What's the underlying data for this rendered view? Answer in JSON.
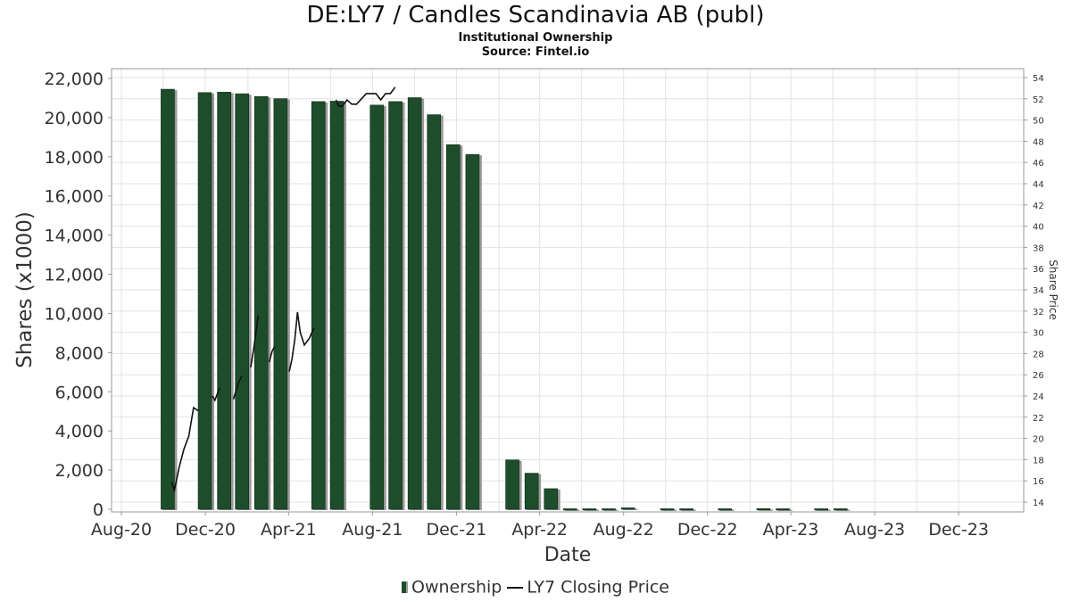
{
  "chart_data": {
    "type": "bar",
    "title": "DE:LY7 / Candles Scandinavia AB (publ)",
    "subtitle": "Institutional Ownership",
    "source": "Source: Fintel.io",
    "xlabel": "Date",
    "ylabel": "Shares (x1000)",
    "y2label": "Share Price",
    "ylim": [
      0,
      22400
    ],
    "y2lim": [
      13.3,
      54.9
    ],
    "x_ticks": [
      "Aug-20",
      "Dec-20",
      "Apr-21",
      "Aug-21",
      "Dec-21",
      "Apr-22",
      "Aug-22",
      "Dec-22",
      "Apr-23",
      "Aug-23",
      "Dec-23"
    ],
    "y_ticks": [
      "0",
      "2,000",
      "4,000",
      "6,000",
      "8,000",
      "10,000",
      "12,000",
      "14,000",
      "16,000",
      "18,000",
      "20,000",
      "22,000"
    ],
    "y2_ticks": [
      "14",
      "16",
      "18",
      "20",
      "22",
      "24",
      "26",
      "28",
      "30",
      "32",
      "34",
      "36",
      "38",
      "40",
      "42",
      "44",
      "46",
      "48",
      "50",
      "52",
      "54"
    ],
    "grid": true,
    "legend_position": "bottom",
    "series": [
      {
        "name": "Ownership",
        "color": "#1e4d2b",
        "points": [
          {
            "date": "2020-10-08",
            "value": 21450
          },
          {
            "date": "2020-12-01",
            "value": 21280
          },
          {
            "date": "2020-12-29",
            "value": 21300
          },
          {
            "date": "2021-01-24",
            "value": 21220
          },
          {
            "date": "2021-02-21",
            "value": 21080
          },
          {
            "date": "2021-03-21",
            "value": 20970
          },
          {
            "date": "2021-05-15",
            "value": 20820
          },
          {
            "date": "2021-06-11",
            "value": 20840
          },
          {
            "date": "2021-08-08",
            "value": 20640
          },
          {
            "date": "2021-09-04",
            "value": 20820
          },
          {
            "date": "2021-10-02",
            "value": 21020
          },
          {
            "date": "2021-10-30",
            "value": 20150
          },
          {
            "date": "2021-11-27",
            "value": 18620
          },
          {
            "date": "2021-12-25",
            "value": 18120
          },
          {
            "date": "2022-02-21",
            "value": 2520
          },
          {
            "date": "2022-03-21",
            "value": 1840
          },
          {
            "date": "2022-04-18",
            "value": 1050
          },
          {
            "date": "2022-05-16",
            "value": 25
          },
          {
            "date": "2022-06-13",
            "value": 25
          },
          {
            "date": "2022-07-11",
            "value": 25
          },
          {
            "date": "2022-08-08",
            "value": 70
          },
          {
            "date": "2022-10-04",
            "value": 25
          },
          {
            "date": "2022-11-01",
            "value": 25
          },
          {
            "date": "2022-12-27",
            "value": 25
          },
          {
            "date": "2023-02-21",
            "value": 30
          },
          {
            "date": "2023-03-21",
            "value": 25
          },
          {
            "date": "2023-05-16",
            "value": 25
          },
          {
            "date": "2023-06-13",
            "value": 25
          }
        ]
      },
      {
        "name": "LY7 Closing Price",
        "color": "#111111",
        "segments": [
          [
            [
              "2020-10-13",
              15.9
            ],
            [
              "2020-10-17",
              15.1
            ],
            [
              "2020-10-24",
              17.3
            ],
            [
              "2020-10-31",
              19.0
            ],
            [
              "2020-11-07",
              20.2
            ],
            [
              "2020-11-14",
              22.9
            ],
            [
              "2020-11-21",
              22.6
            ]
          ],
          [
            [
              "2020-12-11",
              24.0
            ],
            [
              "2020-12-15",
              23.6
            ],
            [
              "2020-12-22",
              24.8
            ]
          ],
          [
            [
              "2021-01-11",
              23.7
            ],
            [
              "2021-01-18",
              25.2
            ],
            [
              "2021-01-23",
              25.9
            ]
          ],
          [
            [
              "2021-02-05",
              26.7
            ],
            [
              "2021-02-09",
              28.3
            ],
            [
              "2021-02-16",
              31.6
            ]
          ],
          [
            [
              "2021-03-04",
              27.2
            ],
            [
              "2021-03-08",
              28.2
            ],
            [
              "2021-03-12",
              28.7
            ]
          ],
          [
            [
              "2021-04-02",
              26.3
            ],
            [
              "2021-04-06",
              27.5
            ],
            [
              "2021-04-10",
              29.3
            ],
            [
              "2021-04-14",
              31.9
            ],
            [
              "2021-04-18",
              30.0
            ],
            [
              "2021-04-24",
              28.8
            ],
            [
              "2021-05-01",
              29.4
            ],
            [
              "2021-05-08",
              30.4
            ]
          ],
          [
            [
              "2021-06-09",
              51.9
            ],
            [
              "2021-06-13",
              51.3
            ],
            [
              "2021-06-18",
              51.3
            ],
            [
              "2021-06-25",
              51.9
            ],
            [
              "2021-07-02",
              51.5
            ],
            [
              "2021-07-09",
              51.5
            ],
            [
              "2021-07-16",
              52.0
            ],
            [
              "2021-07-23",
              52.5
            ],
            [
              "2021-07-30",
              52.5
            ],
            [
              "2021-08-06",
              52.5
            ],
            [
              "2021-08-13",
              51.9
            ],
            [
              "2021-08-20",
              52.5
            ],
            [
              "2021-08-27",
              52.5
            ],
            [
              "2021-09-03",
              53.1
            ]
          ]
        ]
      }
    ]
  }
}
